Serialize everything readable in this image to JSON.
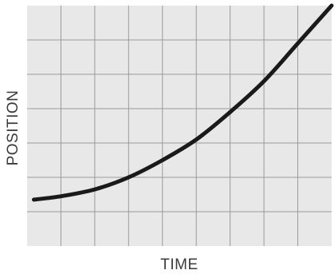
{
  "chart_data": {
    "type": "line",
    "title": "",
    "xlabel": "TIME",
    "ylabel": "POSITION",
    "grid": true,
    "xlim": [
      0,
      9
    ],
    "ylim": [
      0,
      7
    ],
    "x_gridlines": 9,
    "y_gridlines": 7,
    "tick_labels_shown": false,
    "colors": {
      "plot_background": "#e8e8e8",
      "grid": "#9a9a9a",
      "line": "#1a1a1a",
      "axis_text": "#3a3a3a"
    },
    "series": [
      {
        "x": [
          0.2,
          1,
          2,
          3,
          4,
          5,
          6,
          7,
          8,
          9
        ],
        "y": [
          1.35,
          1.45,
          1.65,
          2.0,
          2.5,
          3.1,
          3.9,
          4.8,
          5.9,
          7.0
        ]
      }
    ]
  }
}
